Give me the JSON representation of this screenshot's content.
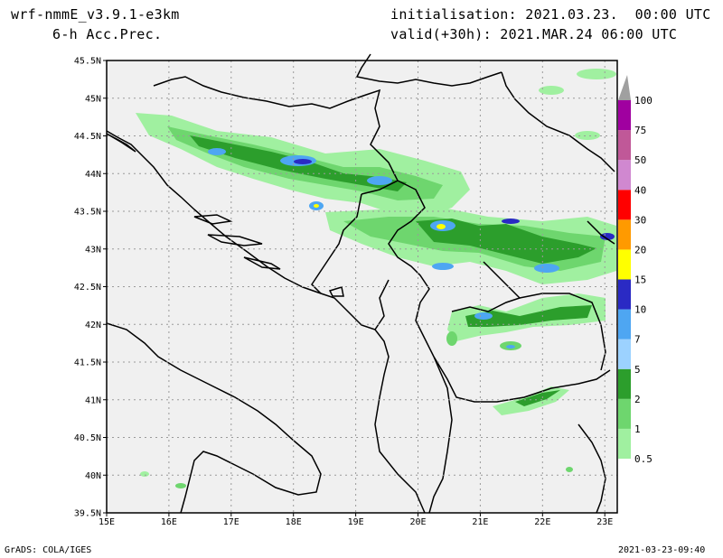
{
  "header": {
    "model": "wrf-nmmE_v3.9.1-e3km",
    "field": "6-h Acc.Prec.",
    "init": "initialisation: 2021.03.23.  00:00 UTC",
    "valid": "valid(+30h): 2021.MAR.24 06:00 UTC"
  },
  "map": {
    "lon_range": [
      15,
      23.2
    ],
    "lat_range": [
      39.5,
      45.5
    ],
    "lon_ticks": [
      "15E",
      "16E",
      "17E",
      "18E",
      "19E",
      "20E",
      "21E",
      "22E",
      "23E"
    ],
    "lat_ticks": [
      "39.5N",
      "40N",
      "40.5N",
      "41N",
      "41.5N",
      "42N",
      "42.5N",
      "43N",
      "43.5N",
      "44N",
      "44.5N",
      "45N",
      "45.5N"
    ],
    "background_color": "#f0f0f0"
  },
  "legend": {
    "levels": [
      "0.5",
      "1",
      "2",
      "5",
      "7",
      "10",
      "15",
      "20",
      "30",
      "40",
      "50",
      "75",
      "100"
    ],
    "colors": [
      "#a0f0a0",
      "#6ed66e",
      "#2c9e2c",
      "#9cd2ff",
      "#4ea6f2",
      "#2a2ac4",
      "#ffff00",
      "#ff9a00",
      "#ff0000",
      "#d088d0",
      "#c05898",
      "#a000a0",
      "#a0a0a0"
    ]
  },
  "footer": {
    "left": "GrADS: COLA/IGES",
    "right": "2021-03-23-09:40"
  }
}
